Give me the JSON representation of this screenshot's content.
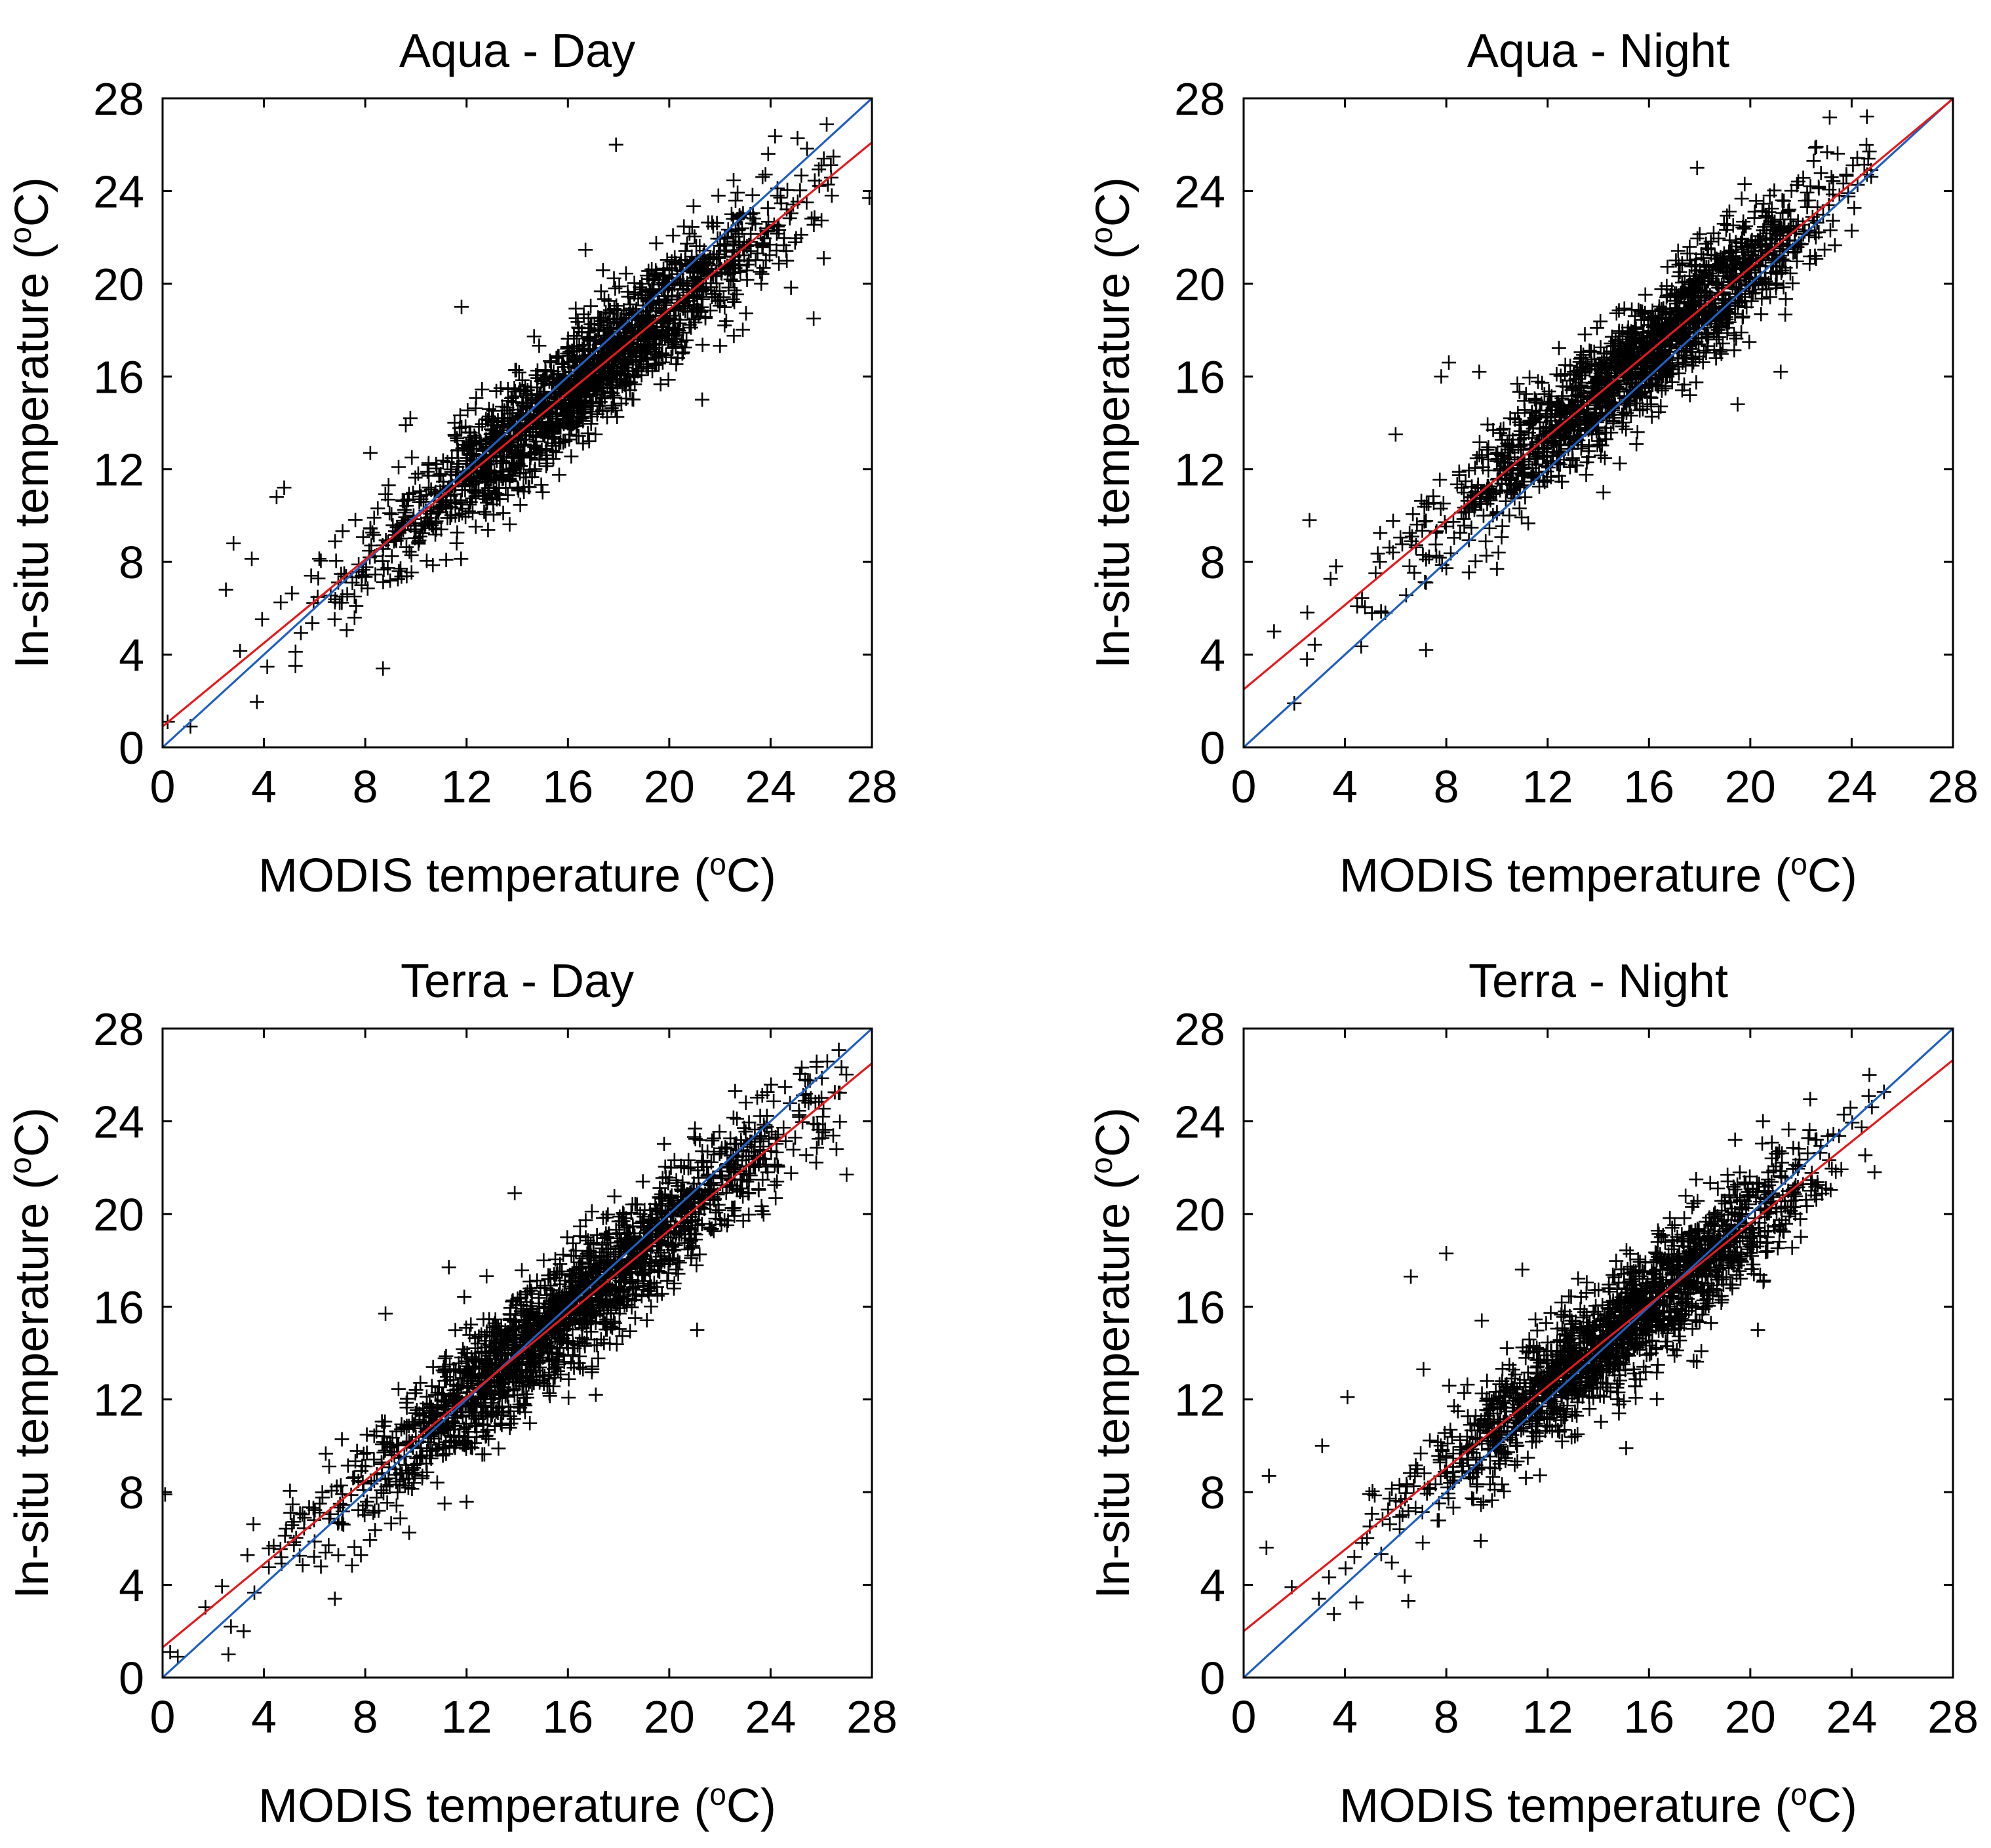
{
  "figure": {
    "colors": {
      "one_to_one": "#1f5fbf",
      "regression": "#e31a1c",
      "points": "#000000"
    },
    "marker": "plus",
    "axis_common": {
      "xlabel_prefix": "MODIS temperature (",
      "ylabel_prefix": "In-situ temperature (",
      "unit_sup": "o",
      "unit_suffix": "C)",
      "ticks": [
        0,
        4,
        8,
        12,
        16,
        20,
        24,
        28
      ]
    }
  },
  "chart_data": [
    {
      "type": "scatter",
      "title": "Aqua - Day",
      "xlabel": "MODIS temperature (oC)",
      "ylabel": "In-situ temperature (oC)",
      "xlim": [
        0,
        28
      ],
      "ylim": [
        0,
        28
      ],
      "xticks": [
        0,
        4,
        8,
        12,
        16,
        20,
        24,
        28
      ],
      "yticks": [
        0,
        4,
        8,
        12,
        16,
        20,
        24,
        28
      ],
      "one_to_one_line": {
        "slope": 1.0,
        "intercept": 0.0
      },
      "regression_line": {
        "slope": 0.9,
        "intercept": 0.9
      },
      "cloud": {
        "n": 1800,
        "x_min": 1.0,
        "x_max": 26.5,
        "x_mean": 16.5,
        "x_sd": 4.2,
        "residual_sd": 1.2,
        "seed": 11
      },
      "outliers": [
        [
          0.2,
          1.1
        ],
        [
          1.1,
          0.9
        ],
        [
          2.5,
          6.8
        ],
        [
          2.8,
          8.8
        ],
        [
          4.8,
          11.2
        ],
        [
          4.5,
          10.8
        ],
        [
          8.7,
          3.4
        ],
        [
          17.9,
          26.0
        ],
        [
          25.7,
          18.5
        ],
        [
          27.9,
          23.7
        ],
        [
          26.1,
          21.1
        ],
        [
          21.3,
          15.0
        ],
        [
          11.8,
          19.0
        ],
        [
          9.6,
          13.9
        ],
        [
          8.2,
          12.7
        ]
      ]
    },
    {
      "type": "scatter",
      "title": "Aqua - Night",
      "xlabel": "MODIS temperature (oC)",
      "ylabel": "In-situ temperature (oC)",
      "xlim": [
        0,
        28
      ],
      "ylim": [
        0,
        28
      ],
      "xticks": [
        0,
        4,
        8,
        12,
        16,
        20,
        24,
        28
      ],
      "yticks": [
        0,
        4,
        8,
        12,
        16,
        20,
        24,
        28
      ],
      "one_to_one_line": {
        "slope": 1.0,
        "intercept": 0.0
      },
      "regression_line": {
        "slope": 0.91,
        "intercept": 2.5
      },
      "cloud": {
        "n": 1700,
        "x_min": 1.0,
        "x_max": 24.8,
        "x_mean": 15.5,
        "x_sd": 4.0,
        "residual_sd": 1.2,
        "seed": 23
      },
      "outliers": [
        [
          2.0,
          1.9
        ],
        [
          1.2,
          5.0
        ],
        [
          2.5,
          3.8
        ],
        [
          2.6,
          9.8
        ],
        [
          6.0,
          13.5
        ],
        [
          7.2,
          4.2
        ],
        [
          8.1,
          16.6
        ],
        [
          10.0,
          7.7
        ],
        [
          14.2,
          11.0
        ],
        [
          17.9,
          25.0
        ],
        [
          22.5,
          25.3
        ],
        [
          21.2,
          16.2
        ],
        [
          19.5,
          14.8
        ],
        [
          7.8,
          16.0
        ],
        [
          9.3,
          16.2
        ]
      ]
    },
    {
      "type": "scatter",
      "title": "Terra - Day",
      "xlabel": "MODIS temperature (oC)",
      "ylabel": "In-situ temperature (oC)",
      "xlim": [
        0,
        28
      ],
      "ylim": [
        0,
        28
      ],
      "xticks": [
        0,
        4,
        8,
        12,
        16,
        20,
        24,
        28
      ],
      "yticks": [
        0,
        4,
        8,
        12,
        16,
        20,
        24,
        28
      ],
      "one_to_one_line": {
        "slope": 1.0,
        "intercept": 0.0
      },
      "regression_line": {
        "slope": 0.9,
        "intercept": 1.3
      },
      "cloud": {
        "n": 1900,
        "x_min": 1.5,
        "x_max": 27.0,
        "x_mean": 16.0,
        "x_sd": 4.4,
        "residual_sd": 1.3,
        "seed": 37
      },
      "outliers": [
        [
          0.1,
          7.9
        ],
        [
          0.3,
          1.1
        ],
        [
          0.6,
          0.9
        ],
        [
          2.6,
          1.0
        ],
        [
          3.2,
          2.0
        ],
        [
          2.7,
          2.2
        ],
        [
          6.8,
          3.4
        ],
        [
          13.9,
          20.9
        ],
        [
          11.3,
          17.7
        ],
        [
          22.6,
          25.3
        ],
        [
          27.0,
          21.7
        ],
        [
          26.6,
          22.8
        ],
        [
          21.1,
          15.0
        ],
        [
          8.8,
          15.7
        ],
        [
          17.1,
          12.2
        ]
      ]
    },
    {
      "type": "scatter",
      "title": "Terra - Night",
      "xlabel": "MODIS temperature (oC)",
      "ylabel": "In-situ temperature (oC)",
      "xlim": [
        0,
        28
      ],
      "ylim": [
        0,
        28
      ],
      "xticks": [
        0,
        4,
        8,
        12,
        16,
        20,
        24,
        28
      ],
      "yticks": [
        0,
        4,
        8,
        12,
        16,
        20,
        24,
        28
      ],
      "one_to_one_line": {
        "slope": 1.0,
        "intercept": 0.0
      },
      "regression_line": {
        "slope": 0.88,
        "intercept": 2.0
      },
      "cloud": {
        "n": 1750,
        "x_min": 2.0,
        "x_max": 25.5,
        "x_mean": 15.0,
        "x_sd": 4.0,
        "residual_sd": 1.25,
        "seed": 53
      },
      "outliers": [
        [
          1.0,
          8.7
        ],
        [
          0.9,
          5.6
        ],
        [
          1.9,
          3.9
        ],
        [
          3.1,
          10.0
        ],
        [
          4.1,
          12.1
        ],
        [
          6.5,
          3.3
        ],
        [
          6.6,
          17.3
        ],
        [
          7.1,
          13.3
        ],
        [
          8.0,
          18.3
        ],
        [
          9.4,
          15.4
        ],
        [
          11.0,
          17.6
        ],
        [
          20.5,
          24.0
        ],
        [
          20.3,
          15.0
        ],
        [
          24.7,
          26.0
        ],
        [
          15.1,
          9.9
        ]
      ]
    }
  ]
}
